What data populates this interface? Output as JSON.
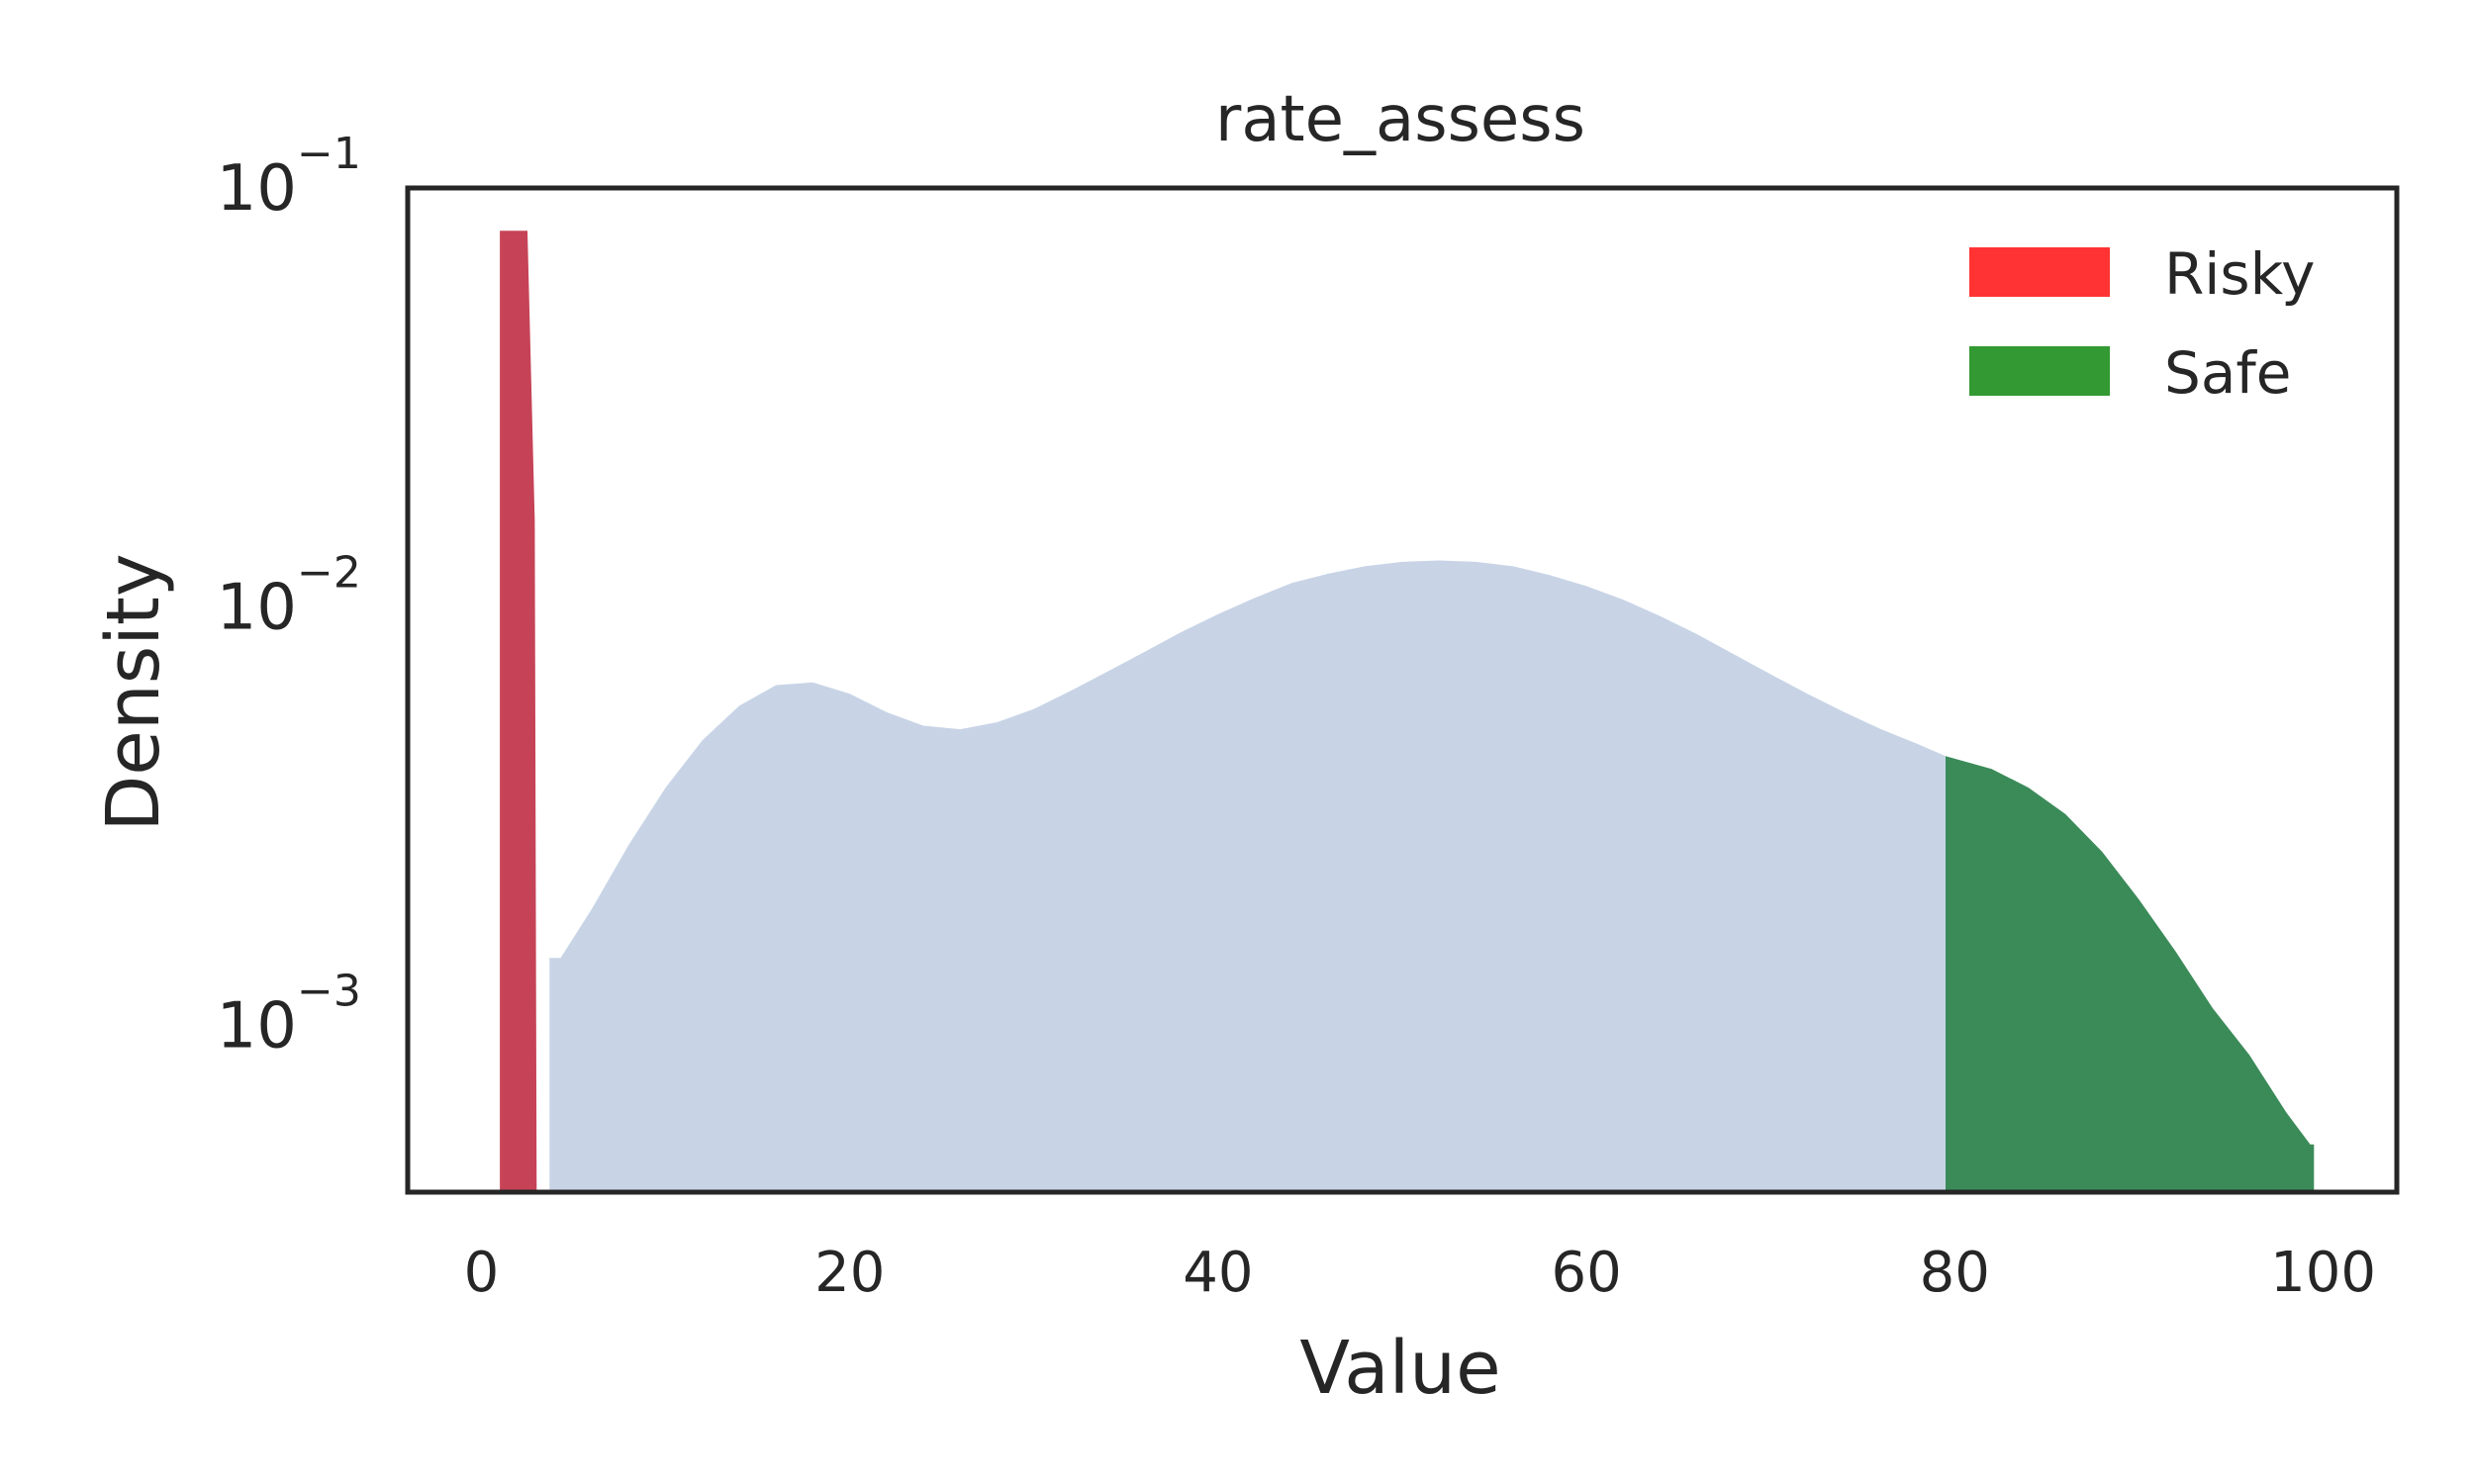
{
  "chart_data": {
    "type": "area",
    "title": "rate_assess",
    "xlabel": "Value",
    "ylabel": "Density",
    "xscale": "linear",
    "yscale": "log",
    "xlim": [
      -4,
      104
    ],
    "ylim": [
      0.0004,
      0.1
    ],
    "xticks": [
      0,
      20,
      40,
      60,
      80,
      100
    ],
    "yticks": [
      {
        "value": 0.001,
        "base": "10",
        "exp": "−3"
      },
      {
        "value": 0.01,
        "base": "10",
        "exp": "−2"
      },
      {
        "value": 0.1,
        "base": "10",
        "exp": "−1"
      }
    ],
    "grid": false,
    "legend_position": "top-right",
    "series": [
      {
        "name": "Density",
        "color": "#c8d4e6",
        "x": [
          3.7,
          4.3,
          6,
          8,
          10,
          12,
          14,
          16,
          18,
          20,
          22,
          24,
          26,
          28,
          30,
          32,
          34,
          36,
          38,
          40,
          42,
          44,
          46,
          48,
          50,
          52,
          54,
          56,
          58,
          60,
          62,
          64,
          66,
          68,
          70,
          72,
          74,
          76,
          78,
          79.5
        ],
        "values": [
          0.00145,
          0.00145,
          0.0019,
          0.0027,
          0.0037,
          0.0048,
          0.0058,
          0.0065,
          0.0066,
          0.0062,
          0.0056,
          0.0052,
          0.0051,
          0.0053,
          0.0057,
          0.0063,
          0.007,
          0.0078,
          0.0087,
          0.0096,
          0.0105,
          0.0114,
          0.012,
          0.0125,
          0.0128,
          0.0129,
          0.0128,
          0.0125,
          0.0119,
          0.0112,
          0.0104,
          0.0095,
          0.0086,
          0.0077,
          0.0069,
          0.0062,
          0.0056,
          0.0051,
          0.0047,
          0.0044
        ]
      },
      {
        "name": "Risky",
        "color": "#c64357",
        "x": [
          1.0,
          2.5,
          2.9,
          3.0
        ],
        "values": [
          0.079,
          0.079,
          0.016,
          0.0004
        ]
      },
      {
        "name": "Safe",
        "color": "#3b8b59",
        "x": [
          79.5,
          82,
          84,
          86,
          88,
          90,
          92,
          94,
          96,
          98,
          99.3,
          99.5
        ],
        "values": [
          0.0044,
          0.0041,
          0.0037,
          0.0032,
          0.0026,
          0.002,
          0.0015,
          0.0011,
          0.00085,
          0.00062,
          0.00052,
          0.00052
        ]
      }
    ],
    "legend": [
      {
        "label": "Risky",
        "color": "#ff3333"
      },
      {
        "label": "Safe",
        "color": "#339933"
      }
    ]
  }
}
